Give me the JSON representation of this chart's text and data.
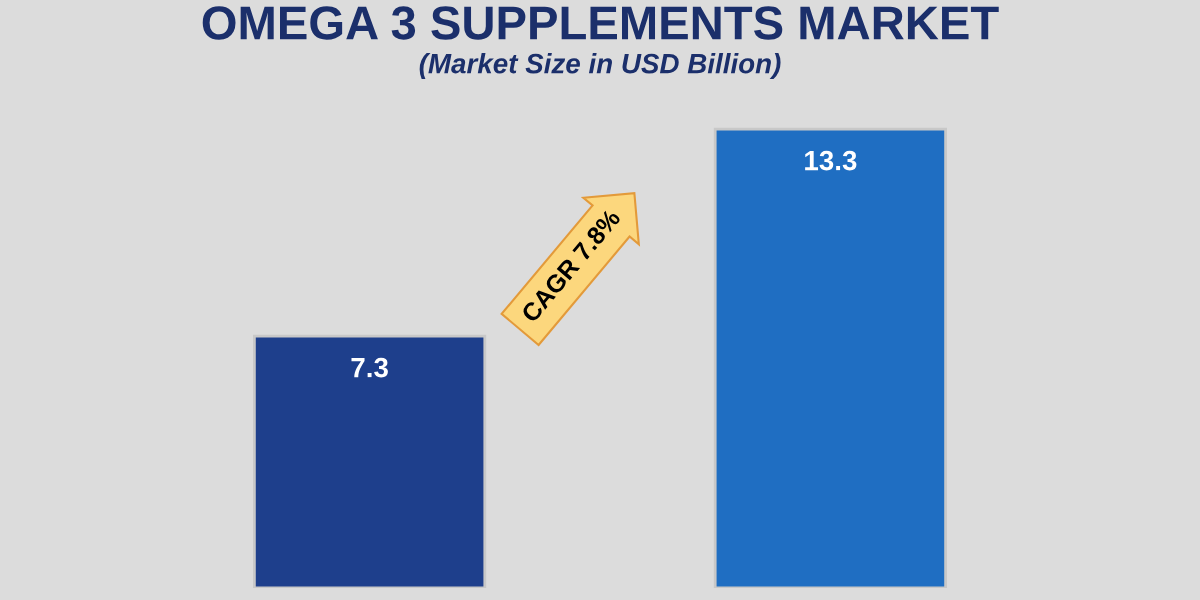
{
  "chart_data": {
    "type": "bar",
    "title": "OMEGA 3 SUPPLEMENTS MARKET",
    "subtitle": "(Market Size in USD Billion)",
    "categories": [
      null,
      null
    ],
    "values": [
      7.3,
      13.3
    ],
    "colors": [
      "#1e3f8c",
      "#1f6ec2"
    ],
    "data_labels": true,
    "annotations": [
      "CAGR 7.8%"
    ],
    "grid": false,
    "legend": false,
    "tick_labels": false
  }
}
